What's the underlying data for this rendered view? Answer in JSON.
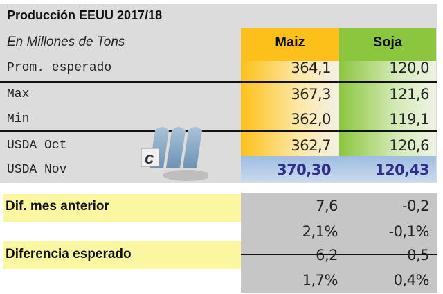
{
  "title": "Producción EEUU 2017/18",
  "subtitle": "En Millones de Tons",
  "columns": [
    "Maiz",
    "Soja"
  ],
  "rows": [
    {
      "label": "Prom. esperado",
      "maiz": "364,1",
      "soja": "120,0"
    },
    {
      "label": "Max",
      "maiz": "367,3",
      "soja": "121,6"
    },
    {
      "label": "Min",
      "maiz": "362,0",
      "soja": "119,1"
    },
    {
      "label": "USDA Oct",
      "maiz": "362,7",
      "soja": "120,6"
    },
    {
      "label": "USDA Nov",
      "maiz": "370,30",
      "soja": "120,43"
    }
  ],
  "diffs": [
    {
      "label": "Dif. mes anterior",
      "maiz": "7,6",
      "soja": "-0,2",
      "maiz_pct": "2,1%",
      "soja_pct": "-0,1%"
    },
    {
      "label": "Diferencia esperado",
      "maiz": "6,2",
      "soja": "0,5",
      "maiz_pct": "1,7%",
      "soja_pct": "0,4%"
    }
  ],
  "logo_text": "cm",
  "colors": {
    "maiz": "#fdc01a",
    "soja": "#8cc63f",
    "nov": "#a8c4e6",
    "nov_text": "#2e2e8c",
    "highlight": "#fbf6a0"
  }
}
